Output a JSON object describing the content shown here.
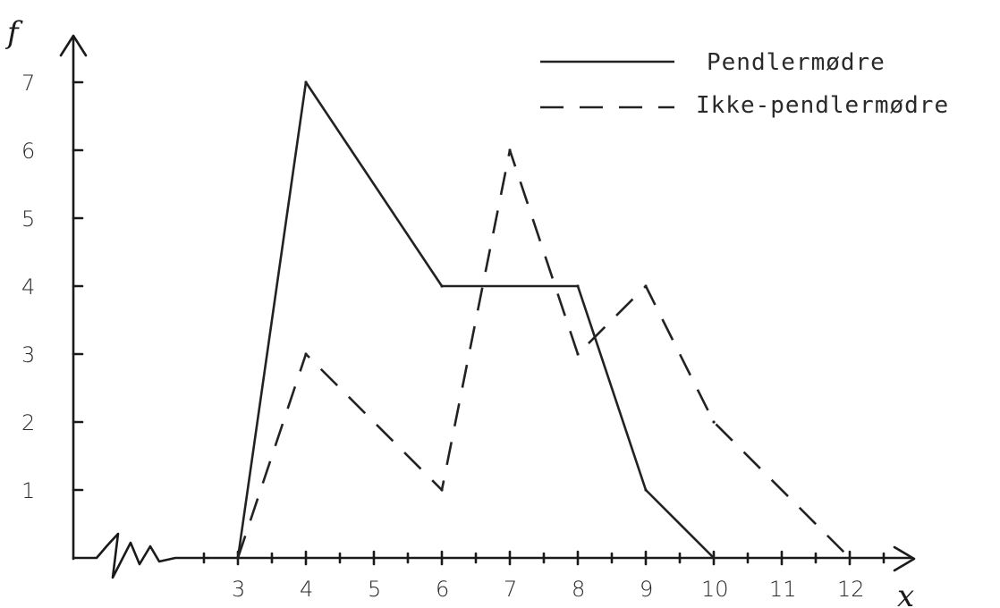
{
  "chart_data": {
    "type": "line",
    "ylabel": "f",
    "xlabel": "x",
    "x_ticks": [
      3,
      4,
      5,
      6,
      7,
      8,
      9,
      10,
      11,
      12
    ],
    "y_ticks": [
      1,
      2,
      3,
      4,
      5,
      6,
      7
    ],
    "xlim": [
      3,
      12
    ],
    "ylim": [
      0,
      7
    ],
    "axis_break_on_x": true,
    "grid": false,
    "legend_position": "top-right",
    "series": [
      {
        "name": "Pendlermødre",
        "style": "solid",
        "points": [
          [
            3,
            0
          ],
          [
            4,
            7
          ],
          [
            6,
            4
          ],
          [
            8,
            4
          ],
          [
            9,
            1
          ],
          [
            10,
            0
          ]
        ]
      },
      {
        "name": "Ikke-pendlermødre",
        "style": "dashed",
        "points": [
          [
            3,
            0
          ],
          [
            4,
            3
          ],
          [
            6,
            1
          ],
          [
            7,
            6
          ],
          [
            8,
            3
          ],
          [
            9,
            4
          ],
          [
            10,
            2
          ],
          [
            12,
            0
          ]
        ]
      }
    ]
  }
}
